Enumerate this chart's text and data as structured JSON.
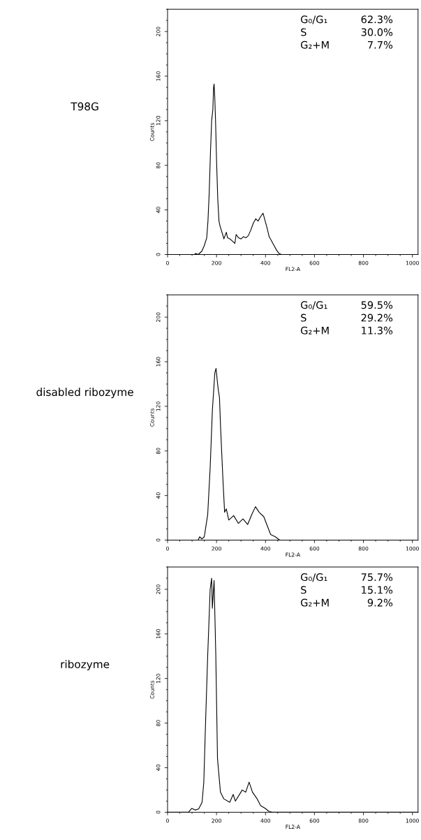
{
  "chart_data": [
    {
      "type": "line",
      "title": "T98G",
      "xlabel": "FL2-A",
      "ylabel": "Counts",
      "xlim": [
        0,
        1023
      ],
      "ylim": [
        0,
        220
      ],
      "xticks": [
        0,
        200,
        400,
        600,
        800,
        1000
      ],
      "yticks": [
        0,
        40,
        80,
        120,
        160,
        200
      ],
      "annotations": [
        "G₀/G₁ 62.3%",
        "S 30.0%",
        "G₂+M 7.7%"
      ],
      "series": [
        {
          "color": "#000000",
          "x": [
            0,
            110,
            115,
            125,
            140,
            150,
            160,
            165,
            170,
            175,
            180,
            185,
            188,
            190,
            193,
            196,
            200,
            205,
            210,
            215,
            225,
            230,
            240,
            245,
            255,
            265,
            275,
            280,
            290,
            300,
            310,
            320,
            330,
            340,
            350,
            360,
            370,
            380,
            390,
            395,
            405,
            415,
            425,
            435,
            445,
            455,
            465,
            1023
          ],
          "values": [
            0,
            0,
            1,
            0,
            3,
            8,
            15,
            30,
            55,
            90,
            120,
            130,
            150,
            153,
            140,
            120,
            85,
            50,
            30,
            25,
            18,
            14,
            20,
            15,
            14,
            12,
            10,
            18,
            15,
            14,
            16,
            15,
            17,
            22,
            28,
            32,
            30,
            34,
            37,
            33,
            25,
            16,
            12,
            8,
            4,
            1,
            0,
            0
          ]
        }
      ]
    },
    {
      "type": "line",
      "title": "disabled ribozyme",
      "xlabel": "FL2-A",
      "ylabel": "Counts",
      "xlim": [
        0,
        1023
      ],
      "ylim": [
        0,
        220
      ],
      "xticks": [
        0,
        200,
        400,
        600,
        800,
        1000
      ],
      "yticks": [
        0,
        40,
        80,
        120,
        160,
        200
      ],
      "annotations": [
        "G₀/G₁ 59.5%",
        "S 29.2%",
        "G₂+M 11.3%"
      ],
      "series": [
        {
          "color": "#000000",
          "x": [
            0,
            125,
            131,
            140,
            150,
            164,
            174,
            183,
            193,
            198,
            203,
            207,
            212,
            217,
            226,
            233,
            240,
            250,
            270,
            289,
            308,
            327,
            344,
            359,
            374,
            393,
            407,
            421,
            440,
            458,
            1023
          ],
          "values": [
            0,
            0,
            3,
            1,
            3,
            23,
            65,
            116,
            150,
            154,
            143,
            135,
            128,
            99,
            55,
            25,
            28,
            18,
            22,
            15,
            19,
            14,
            23,
            30,
            25,
            21,
            13,
            5,
            3,
            0,
            0
          ]
        }
      ]
    },
    {
      "type": "line",
      "title": "ribozyme",
      "xlabel": "FL2-A",
      "ylabel": "Counts",
      "xlim": [
        0,
        1023
      ],
      "ylim": [
        0,
        220
      ],
      "xticks": [
        0,
        200,
        400,
        600,
        800,
        1000
      ],
      "yticks": [
        0,
        40,
        80,
        120,
        160,
        200
      ],
      "annotations": [
        "G₀/G₁ 75.7%",
        "S 15.1%",
        "G₂+M 9.2%"
      ],
      "series": [
        {
          "color": "#000000",
          "x": [
            0,
            85,
            99,
            113,
            127,
            141,
            148,
            155,
            164,
            174,
            180,
            183,
            190,
            197,
            204,
            216,
            230,
            254,
            268,
            277,
            305,
            319,
            333,
            347,
            366,
            380,
            399,
            413,
            427,
            1023
          ],
          "values": [
            0,
            0,
            3.5,
            2,
            3,
            9,
            27,
            79,
            141,
            200,
            210,
            183,
            208,
            141,
            48,
            18,
            12,
            9,
            16,
            10,
            20,
            18,
            27,
            18,
            12,
            6,
            3.5,
            1,
            0,
            0
          ]
        }
      ]
    }
  ]
}
